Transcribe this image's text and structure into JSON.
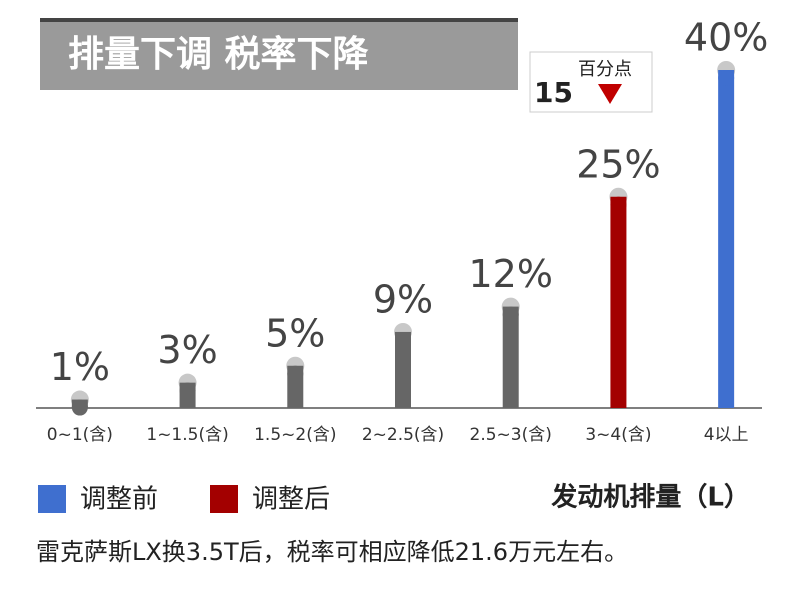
{
  "chart_data": {
    "type": "bar",
    "title": "排量下调 税率下降",
    "categories": [
      "0~1(含)",
      "1~1.5(含)",
      "1.5~2(含)",
      "2~2.5(含)",
      "2.5~3(含)",
      "3~4(含)",
      "4以上"
    ],
    "values": [
      1,
      3,
      5,
      9,
      12,
      25,
      40
    ],
    "value_labels": [
      "1%",
      "3%",
      "5%",
      "9%",
      "12%",
      "25%",
      "40%"
    ],
    "colors": [
      "#666666",
      "#666666",
      "#666666",
      "#666666",
      "#666666",
      "#a30000",
      "#3f6fcf"
    ],
    "ylim": [
      0,
      40
    ],
    "legend": [
      {
        "name": "调整前",
        "color": "#3f6fcf"
      },
      {
        "name": "调整后",
        "color": "#a30000"
      }
    ],
    "x_label": "发动机排量（L）",
    "annotation": {
      "text": "15",
      "unit": "百分点"
    },
    "footnote": "雷克萨斯LX换3.5T后，税率可相应降低21.6万元左右。"
  }
}
